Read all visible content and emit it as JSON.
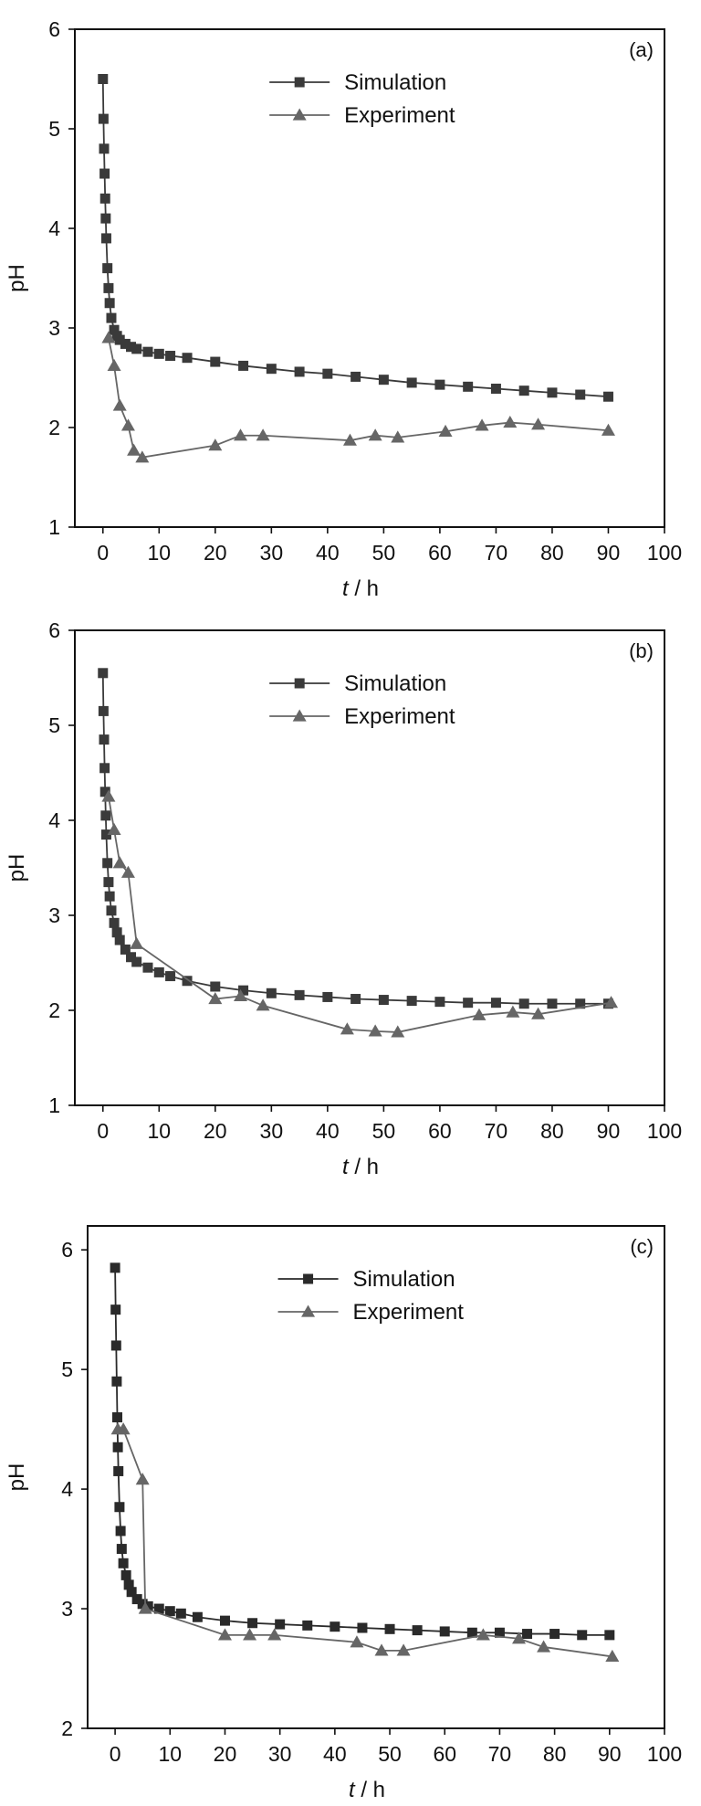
{
  "chart_data": [
    {
      "type": "line",
      "title": "",
      "panel_label": "(a)",
      "xlabel_var": "t",
      "xlabel_unit": " / h",
      "ylabel": "pH",
      "xlim": [
        -5,
        100
      ],
      "ylim": [
        1,
        6
      ],
      "xticks": [
        0,
        10,
        20,
        30,
        40,
        50,
        60,
        70,
        80,
        90,
        100
      ],
      "yticks": [
        1,
        2,
        3,
        4,
        5,
        6
      ],
      "xtick_labels": [
        "0",
        "10",
        "20",
        "30",
        "40",
        "50",
        "60",
        "70",
        "80",
        "90",
        "100"
      ],
      "ytick_labels": [
        "1",
        "2",
        "3",
        "4",
        "5",
        "6"
      ],
      "legend_position": "top-right",
      "series": [
        {
          "name": "Simulation",
          "marker": "square",
          "color": "#3a3a3a",
          "x": [
            0,
            0.1,
            0.2,
            0.3,
            0.4,
            0.5,
            0.6,
            0.8,
            1,
            1.2,
            1.5,
            2,
            2.5,
            3,
            4,
            5,
            6,
            8,
            10,
            12,
            15,
            20,
            25,
            30,
            35,
            40,
            45,
            50,
            55,
            60,
            65,
            70,
            75,
            80,
            85,
            90
          ],
          "y": [
            5.5,
            5.1,
            4.8,
            4.55,
            4.3,
            4.1,
            3.9,
            3.6,
            3.4,
            3.25,
            3.1,
            2.98,
            2.92,
            2.88,
            2.84,
            2.81,
            2.79,
            2.76,
            2.74,
            2.72,
            2.7,
            2.66,
            2.62,
            2.59,
            2.56,
            2.54,
            2.51,
            2.48,
            2.45,
            2.43,
            2.41,
            2.39,
            2.37,
            2.35,
            2.33,
            2.31
          ]
        },
        {
          "name": "Experiment",
          "marker": "triangle",
          "color": "#666666",
          "x": [
            1,
            2,
            3,
            4.5,
            5.5,
            7,
            20,
            24.5,
            28.5,
            44,
            48.5,
            52.5,
            61,
            67.5,
            72.5,
            77.5,
            90
          ],
          "y": [
            2.9,
            2.62,
            2.22,
            2.02,
            1.77,
            1.7,
            1.82,
            1.92,
            1.92,
            1.87,
            1.92,
            1.9,
            1.96,
            2.02,
            2.05,
            2.03,
            1.97
          ]
        }
      ]
    },
    {
      "type": "line",
      "title": "",
      "panel_label": "(b)",
      "xlabel_var": "t",
      "xlabel_unit": " / h",
      "ylabel": "pH",
      "xlim": [
        -5,
        100
      ],
      "ylim": [
        1,
        6
      ],
      "xticks": [
        0,
        10,
        20,
        30,
        40,
        50,
        60,
        70,
        80,
        90,
        100
      ],
      "yticks": [
        1,
        2,
        3,
        4,
        5,
        6
      ],
      "xtick_labels": [
        "0",
        "10",
        "20",
        "30",
        "40",
        "50",
        "60",
        "70",
        "80",
        "90",
        "100"
      ],
      "ytick_labels": [
        "1",
        "2",
        "3",
        "4",
        "5",
        "6"
      ],
      "legend_position": "top-right",
      "series": [
        {
          "name": "Simulation",
          "marker": "square",
          "color": "#3a3a3a",
          "x": [
            0,
            0.1,
            0.2,
            0.3,
            0.4,
            0.5,
            0.6,
            0.8,
            1,
            1.2,
            1.5,
            2,
            2.5,
            3,
            4,
            5,
            6,
            8,
            10,
            12,
            15,
            20,
            25,
            30,
            35,
            40,
            45,
            50,
            55,
            60,
            65,
            70,
            75,
            80,
            85,
            90
          ],
          "y": [
            5.55,
            5.15,
            4.85,
            4.55,
            4.3,
            4.05,
            3.85,
            3.55,
            3.35,
            3.2,
            3.05,
            2.92,
            2.82,
            2.74,
            2.64,
            2.56,
            2.51,
            2.45,
            2.4,
            2.36,
            2.31,
            2.25,
            2.21,
            2.18,
            2.16,
            2.14,
            2.12,
            2.11,
            2.1,
            2.09,
            2.08,
            2.08,
            2.07,
            2.07,
            2.07,
            2.07
          ]
        },
        {
          "name": "Experiment",
          "marker": "triangle",
          "color": "#666666",
          "x": [
            1,
            2,
            3,
            4.5,
            6,
            20,
            24.5,
            28.5,
            43.5,
            48.5,
            52.5,
            67,
            73,
            77.5,
            90.5
          ],
          "y": [
            4.25,
            3.9,
            3.55,
            3.45,
            2.7,
            2.12,
            2.15,
            2.05,
            1.8,
            1.78,
            1.77,
            1.95,
            1.98,
            1.96,
            2.08
          ]
        }
      ]
    },
    {
      "type": "line",
      "title": "",
      "panel_label": "(c)",
      "xlabel_var": "t",
      "xlabel_unit": " / h",
      "ylabel": "pH",
      "xlim": [
        -5,
        100
      ],
      "ylim": [
        2,
        6.2
      ],
      "xticks": [
        0,
        10,
        20,
        30,
        40,
        50,
        60,
        70,
        80,
        90,
        100
      ],
      "yticks": [
        2,
        3,
        4,
        5,
        6
      ],
      "xtick_labels": [
        "0",
        "10",
        "20",
        "30",
        "40",
        "50",
        "60",
        "70",
        "80",
        "90",
        "100"
      ],
      "ytick_labels": [
        "2",
        "3",
        "4",
        "5",
        "6"
      ],
      "legend_position": "top-right",
      "series": [
        {
          "name": "Simulation",
          "marker": "square",
          "color": "#2a2a2a",
          "x": [
            0,
            0.1,
            0.2,
            0.3,
            0.4,
            0.5,
            0.6,
            0.8,
            1,
            1.2,
            1.5,
            2,
            2.5,
            3,
            4,
            5,
            6,
            8,
            10,
            12,
            15,
            20,
            25,
            30,
            35,
            40,
            45,
            50,
            55,
            60,
            65,
            70,
            75,
            80,
            85,
            90
          ],
          "y": [
            5.85,
            5.5,
            5.2,
            4.9,
            4.6,
            4.35,
            4.15,
            3.85,
            3.65,
            3.5,
            3.38,
            3.28,
            3.2,
            3.14,
            3.08,
            3.04,
            3.02,
            3.0,
            2.98,
            2.96,
            2.93,
            2.9,
            2.88,
            2.87,
            2.86,
            2.85,
            2.84,
            2.83,
            2.82,
            2.81,
            2.8,
            2.8,
            2.79,
            2.79,
            2.78,
            2.78
          ]
        },
        {
          "name": "Experiment",
          "marker": "triangle",
          "color": "#666666",
          "x": [
            0.5,
            1.5,
            5,
            5.5,
            20,
            24.5,
            29,
            44,
            48.5,
            52.5,
            67,
            73.5,
            78,
            90.5
          ],
          "y": [
            4.5,
            4.5,
            4.08,
            3.0,
            2.78,
            2.78,
            2.78,
            2.72,
            2.65,
            2.65,
            2.78,
            2.75,
            2.68,
            2.6
          ]
        }
      ]
    }
  ]
}
